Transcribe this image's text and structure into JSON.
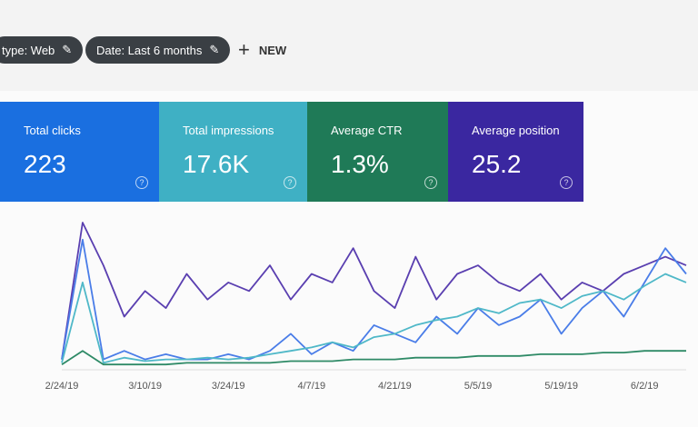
{
  "filters": {
    "type": "type: Web",
    "date": "Date: Last 6 months",
    "new": "NEW"
  },
  "cards": [
    {
      "label": "Total clicks",
      "value": "223",
      "color": "#1a6fe0"
    },
    {
      "label": "Total impressions",
      "value": "17.6K",
      "color": "#3fb0c4"
    },
    {
      "label": "Average CTR",
      "value": "1.3%",
      "color": "#1f7a57"
    },
    {
      "label": "Average position",
      "value": "25.2",
      "color": "#3a27a0"
    }
  ],
  "chart_data": {
    "type": "line",
    "x": [
      "2/24/19",
      null,
      null,
      null,
      "3/10/19",
      null,
      null,
      null,
      "3/24/19",
      null,
      null,
      null,
      "4/7/19",
      null,
      null,
      null,
      "4/21/19",
      null,
      null,
      null,
      "5/5/19",
      null,
      null,
      null,
      "5/19/19",
      null,
      null,
      null,
      "6/2/19",
      null,
      null
    ],
    "series": [
      {
        "color": "#5a3fb0",
        "values": [
          5,
          85,
          60,
          30,
          45,
          35,
          55,
          40,
          50,
          45,
          60,
          40,
          55,
          50,
          70,
          45,
          35,
          65,
          40,
          55,
          60,
          50,
          45,
          55,
          40,
          50,
          45,
          55,
          60,
          65,
          60
        ]
      },
      {
        "color": "#4a7de8",
        "values": [
          5,
          75,
          5,
          10,
          5,
          8,
          5,
          5,
          8,
          5,
          10,
          20,
          8,
          15,
          10,
          25,
          20,
          15,
          30,
          20,
          35,
          25,
          30,
          40,
          20,
          35,
          45,
          30,
          50,
          70,
          55
        ]
      },
      {
        "color": "#4fb8c8",
        "values": [
          3,
          50,
          3,
          6,
          4,
          5,
          5,
          6,
          5,
          6,
          8,
          10,
          12,
          15,
          12,
          18,
          20,
          25,
          28,
          30,
          35,
          32,
          38,
          40,
          35,
          42,
          45,
          40,
          48,
          55,
          50
        ]
      },
      {
        "color": "#2e8a66",
        "values": [
          2,
          10,
          2,
          2,
          2,
          2,
          3,
          3,
          3,
          3,
          3,
          4,
          4,
          4,
          5,
          5,
          5,
          6,
          6,
          6,
          7,
          7,
          7,
          8,
          8,
          8,
          9,
          9,
          10,
          10,
          10
        ]
      }
    ]
  }
}
